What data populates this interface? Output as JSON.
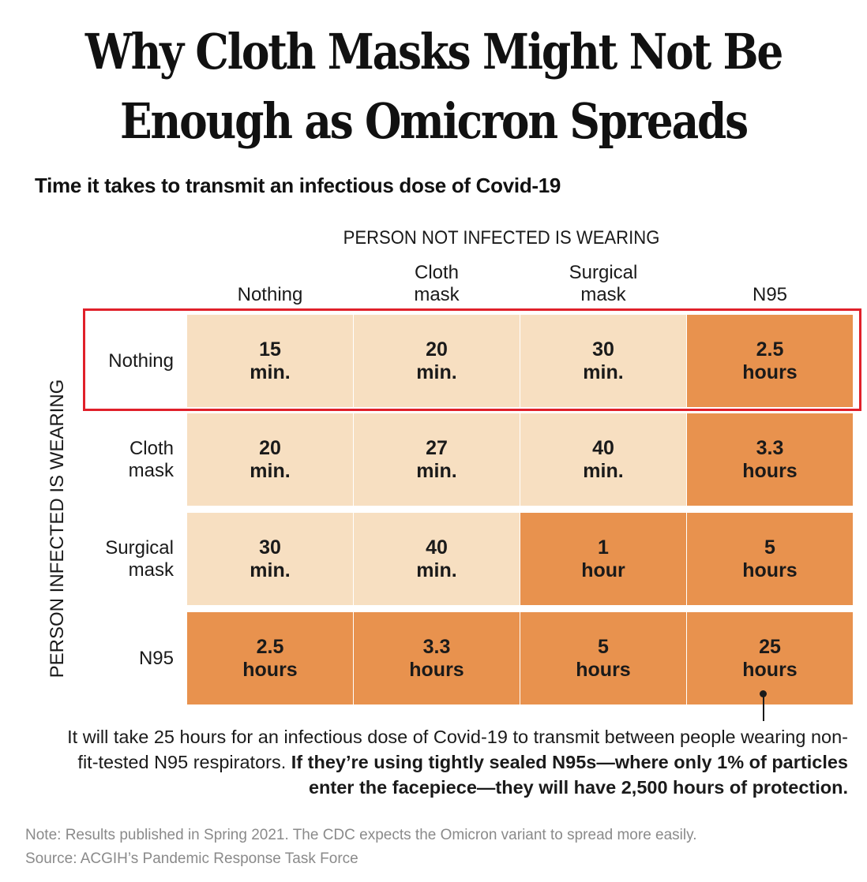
{
  "chart_data": {
    "type": "table",
    "title_line1": "Why Cloth Masks Might Not Be",
    "title_line2": "Enough as Omicron Spreads",
    "subtitle": "Time it takes to transmit an infectious dose of Covid-19",
    "column_axis_label": "PERSON NOT INFECTED IS WEARING",
    "row_axis_label": "PERSON INFECTED IS WEARING",
    "columns": [
      "Nothing",
      "Cloth\nmask",
      "Surgical\nmask",
      "N95"
    ],
    "rows": [
      "Nothing",
      "Cloth\nmask",
      "Surgical\nmask",
      "N95"
    ],
    "cells": [
      [
        "15\nmin.",
        "20\nmin.",
        "30\nmin.",
        "2.5\nhours"
      ],
      [
        "20\nmin.",
        "27\nmin.",
        "40\nmin.",
        "3.3\nhours"
      ],
      [
        "30\nmin.",
        "40\nmin.",
        "1\nhour",
        "5\nhours"
      ],
      [
        "2.5\nhours",
        "3.3\nhours",
        "5\nhours",
        "25\nhours"
      ]
    ],
    "cell_levels": [
      [
        "light",
        "light",
        "light",
        "dark"
      ],
      [
        "light",
        "light",
        "light",
        "dark"
      ],
      [
        "light",
        "light",
        "dark",
        "dark"
      ],
      [
        "dark",
        "dark",
        "dark",
        "dark"
      ]
    ],
    "colors": {
      "light": "#f7dfc1",
      "dark": "#e8924e",
      "highlight": "#e0202a"
    },
    "annotation_regular": "It will take 25 hours for an infectious dose of Covid-19 to transmit between people wearing non-fit-tested N95 respirators. ",
    "annotation_bold": "If they’re using tightly sealed N95s—where only 1% of particles enter the facepiece—they will have 2,500 hours of protection.",
    "note": "Note: Results published in Spring 2021. The CDC expects the Omicron variant to spread more easily.",
    "source": "Source: ACGIH’s Pandemic Response Task Force"
  }
}
